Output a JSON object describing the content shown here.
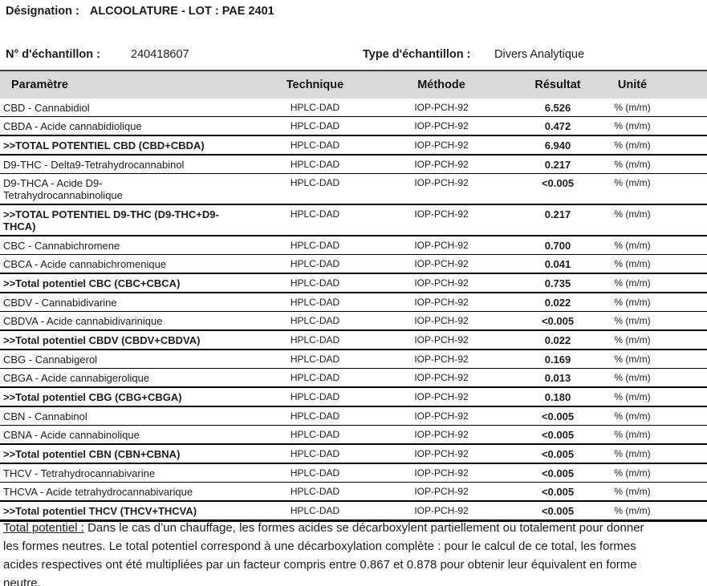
{
  "header": {
    "designation_label": "Désignation :",
    "designation_value": "ALCOOLATURE - LOT : PAE 2401",
    "sample_number_label": "N° d'échantillon :",
    "sample_number_value": "240418607",
    "sample_type_label": "Type d'échantillon :",
    "sample_type_value": "Divers Analytique"
  },
  "table": {
    "headers": {
      "parameter": "Paramètre",
      "technique": "Technique",
      "method": "Méthode",
      "result": "Résultat",
      "unit": "Unité"
    },
    "rows": [
      {
        "parameter": "CBD - Cannabidiol",
        "technique": "HPLC-DAD",
        "method": "IOP-PCH-92",
        "result": "6.526",
        "unit": "% (m/m)",
        "is_total": false
      },
      {
        "parameter": "CBDA - Acide cannabidiolique",
        "technique": "HPLC-DAD",
        "method": "IOP-PCH-92",
        "result": "0.472",
        "unit": "% (m/m)",
        "is_total": false
      },
      {
        "parameter": ">>TOTAL POTENTIEL CBD (CBD+CBDA)",
        "technique": "HPLC-DAD",
        "method": "IOP-PCH-92",
        "result": "6.940",
        "unit": "% (m/m)",
        "is_total": true
      },
      {
        "parameter": "D9-THC - Delta9-Tetrahydrocannabinol",
        "technique": "HPLC-DAD",
        "method": "IOP-PCH-92",
        "result": "0.217",
        "unit": "% (m/m)",
        "is_total": false
      },
      {
        "parameter": "D9-THCA - Acide D9-\nTetrahydrocannabinolique",
        "technique": "HPLC-DAD",
        "method": "IOP-PCH-92",
        "result": "<0.005",
        "unit": "% (m/m)",
        "is_total": false
      },
      {
        "parameter": ">>TOTAL POTENTIEL D9-THC (D9-THC+D9-\nTHCA)",
        "technique": "HPLC-DAD",
        "method": "IOP-PCH-92",
        "result": "0.217",
        "unit": "% (m/m)",
        "is_total": true
      },
      {
        "parameter": "CBC - Cannabichromene",
        "technique": "HPLC-DAD",
        "method": "IOP-PCH-92",
        "result": "0.700",
        "unit": "% (m/m)",
        "is_total": false
      },
      {
        "parameter": "CBCA - Acide cannabichromenique",
        "technique": "HPLC-DAD",
        "method": "IOP-PCH-92",
        "result": "0.041",
        "unit": "% (m/m)",
        "is_total": false
      },
      {
        "parameter": ">>Total potentiel CBC (CBC+CBCA)",
        "technique": "HPLC-DAD",
        "method": "IOP-PCH-92",
        "result": "0.735",
        "unit": "% (m/m)",
        "is_total": true
      },
      {
        "parameter": "CBDV - Cannabidivarine",
        "technique": "HPLC-DAD",
        "method": "IOP-PCH-92",
        "result": "0.022",
        "unit": "% (m/m)",
        "is_total": false
      },
      {
        "parameter": "CBDVA - Acide cannabidivarinique",
        "technique": "HPLC-DAD",
        "method": "IOP-PCH-92",
        "result": "<0.005",
        "unit": "% (m/m)",
        "is_total": false
      },
      {
        "parameter": ">>Total potentiel CBDV (CBDV+CBDVA)",
        "technique": "HPLC-DAD",
        "method": "IOP-PCH-92",
        "result": "0.022",
        "unit": "% (m/m)",
        "is_total": true
      },
      {
        "parameter": "CBG - Cannabigerol",
        "technique": "HPLC-DAD",
        "method": "IOP-PCH-92",
        "result": "0.169",
        "unit": "% (m/m)",
        "is_total": false
      },
      {
        "parameter": "CBGA - Acide cannabigerolique",
        "technique": "HPLC-DAD",
        "method": "IOP-PCH-92",
        "result": "0.013",
        "unit": "% (m/m)",
        "is_total": false
      },
      {
        "parameter": ">>Total potentiel CBG (CBG+CBGA)",
        "technique": "HPLC-DAD",
        "method": "IOP-PCH-92",
        "result": "0.180",
        "unit": "% (m/m)",
        "is_total": true
      },
      {
        "parameter": "CBN - Cannabinol",
        "technique": "HPLC-DAD",
        "method": "IOP-PCH-92",
        "result": "<0.005",
        "unit": "% (m/m)",
        "is_total": false
      },
      {
        "parameter": "CBNA - Acide cannabinolique",
        "technique": "HPLC-DAD",
        "method": "IOP-PCH-92",
        "result": "<0.005",
        "unit": "% (m/m)",
        "is_total": false
      },
      {
        "parameter": ">>Total potentiel CBN (CBN+CBNA)",
        "technique": "HPLC-DAD",
        "method": "IOP-PCH-92",
        "result": "<0.005",
        "unit": "% (m/m)",
        "is_total": true
      },
      {
        "parameter": "THCV - Tetrahydrocannabivarine",
        "technique": "HPLC-DAD",
        "method": "IOP-PCH-92",
        "result": "<0.005",
        "unit": "% (m/m)",
        "is_total": false
      },
      {
        "parameter": "THCVA - Acide tetrahydrocannabivarique",
        "technique": "HPLC-DAD",
        "method": "IOP-PCH-92",
        "result": "<0.005",
        "unit": "% (m/m)",
        "is_total": false
      },
      {
        "parameter": ">>Total potentiel THCV (THCV+THCVA)",
        "technique": "HPLC-DAD",
        "method": "IOP-PCH-92",
        "result": "<0.005",
        "unit": "% (m/m)",
        "is_total": true
      }
    ]
  },
  "footnote": {
    "underlined": "Total potentiel :",
    "line1_rest": " Dans le cas d’un chauffage, les formes acides se décarboxylent partiellement ou totalement pour donner",
    "line2": "les formes neutres. Le total potentiel correspond à une décarboxylation complète : pour le calcul de ce total, les formes",
    "line3": "acides respectives ont été multipliées par un facteur compris entre 0.867 et 0.878 pour obtenir leur équivalent en forme",
    "line4": "neutre."
  },
  "colors": {
    "table_header_bg": "#d9d9d9",
    "table_top_border": "#3d3d3d",
    "rule_color": "#000000",
    "text_color": "#1c1c1c"
  }
}
